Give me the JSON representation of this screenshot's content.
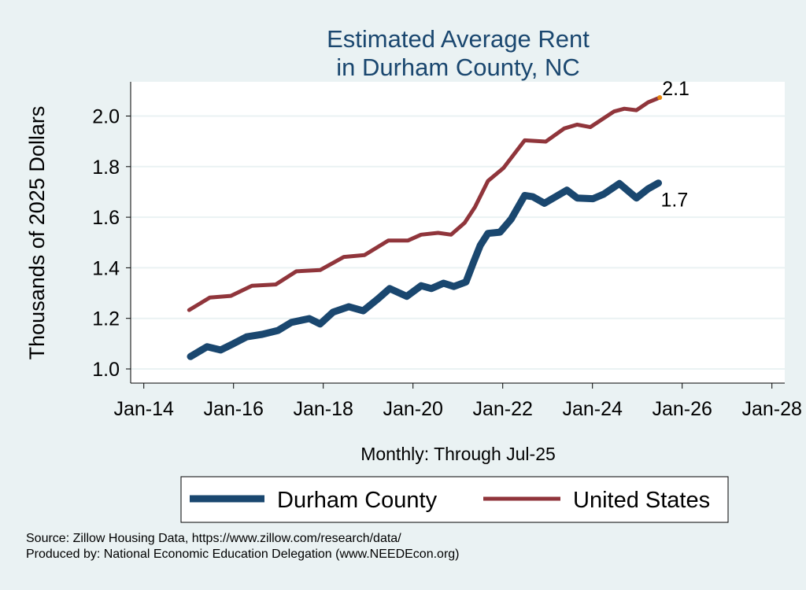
{
  "chart_data": {
    "type": "line",
    "title": [
      "Estimated Average Rent",
      "in Durham County, NC"
    ],
    "xlabel": "Monthly: Through Jul-25",
    "ylabel": "Thousands of 2025 Dollars",
    "xlim": [
      2014,
      2028
    ],
    "ylim": [
      1.0,
      2.1
    ],
    "x_ticks": [
      {
        "value": 2014,
        "label": "Jan-14"
      },
      {
        "value": 2016,
        "label": "Jan-16"
      },
      {
        "value": 2018,
        "label": "Jan-18"
      },
      {
        "value": 2020,
        "label": "Jan-20"
      },
      {
        "value": 2022,
        "label": "Jan-22"
      },
      {
        "value": 2024,
        "label": "Jan-24"
      },
      {
        "value": 2026,
        "label": "Jan-26"
      },
      {
        "value": 2028,
        "label": "Jan-28"
      }
    ],
    "y_ticks": [
      {
        "value": 1.0,
        "label": "1.0"
      },
      {
        "value": 1.2,
        "label": "1.2"
      },
      {
        "value": 1.4,
        "label": "1.4"
      },
      {
        "value": 1.6,
        "label": "1.6"
      },
      {
        "value": 1.8,
        "label": "1.8"
      },
      {
        "value": 2.0,
        "label": "2.0"
      }
    ],
    "grid": true,
    "legend_position": "bottom",
    "series": [
      {
        "name": "Durham County",
        "color": "#1a476f",
        "end_label": "1.7",
        "x": [
          2015.04,
          2015.41,
          2015.71,
          2016.0,
          2016.29,
          2016.64,
          2016.99,
          2017.29,
          2017.69,
          2017.93,
          2018.22,
          2018.57,
          2018.89,
          2019.22,
          2019.48,
          2019.86,
          2020.18,
          2020.41,
          2020.68,
          2020.91,
          2021.18,
          2021.35,
          2021.5,
          2021.67,
          2021.94,
          2022.19,
          2022.49,
          2022.67,
          2022.93,
          2023.43,
          2023.66,
          2024.01,
          2024.25,
          2024.6,
          2024.98,
          2025.24,
          2025.47
        ],
        "y": [
          1.049,
          1.088,
          1.075,
          1.1,
          1.127,
          1.137,
          1.152,
          1.184,
          1.199,
          1.178,
          1.225,
          1.246,
          1.23,
          1.277,
          1.318,
          1.287,
          1.329,
          1.318,
          1.339,
          1.326,
          1.344,
          1.422,
          1.489,
          1.536,
          1.541,
          1.593,
          1.686,
          1.681,
          1.655,
          1.707,
          1.676,
          1.673,
          1.691,
          1.733,
          1.676,
          1.712,
          1.735
        ]
      },
      {
        "name": "United States",
        "color": "#90353b",
        "end_label": "2.1",
        "end_marker_color": "#e8850c",
        "x": [
          2015.01,
          2015.47,
          2015.94,
          2016.41,
          2016.94,
          2017.4,
          2017.93,
          2018.46,
          2018.92,
          2019.45,
          2019.89,
          2020.18,
          2020.56,
          2020.85,
          2021.15,
          2021.38,
          2021.67,
          2022.02,
          2022.49,
          2022.96,
          2023.37,
          2023.66,
          2023.95,
          2024.48,
          2024.71,
          2024.98,
          2025.24,
          2025.5
        ],
        "y": [
          1.233,
          1.282,
          1.289,
          1.329,
          1.334,
          1.386,
          1.391,
          1.443,
          1.45,
          1.508,
          1.508,
          1.531,
          1.538,
          1.531,
          1.578,
          1.64,
          1.743,
          1.795,
          1.904,
          1.899,
          1.951,
          1.966,
          1.956,
          2.018,
          2.029,
          2.023,
          2.054,
          2.073
        ]
      }
    ]
  },
  "notes": {
    "source": "Source: Zillow Housing Data, https://www.zillow.com/research/data/",
    "produced_by": "Produced by: National Economic Education Delegation (www.NEEDEcon.org)"
  }
}
